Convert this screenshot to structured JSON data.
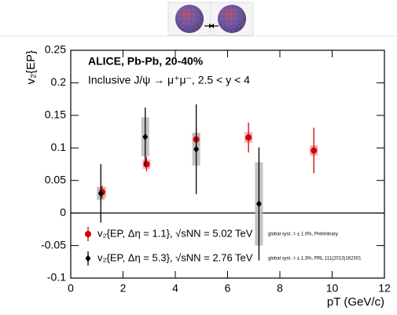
{
  "chart_data": {
    "type": "errorbar",
    "title": "ALICE, Pb-Pb, 20-40%",
    "subtitle": "Inclusive J/ψ → μ⁺μ⁻, 2.5 < y < 4",
    "x_label": "pT (GeV/c)",
    "y_label": "v₂{EP}",
    "xlim": [
      0,
      12
    ],
    "xticks": [
      0,
      2,
      4,
      6,
      8,
      10,
      12
    ],
    "ylim": [
      -0.1,
      0.25
    ],
    "yticks": [
      -0.1,
      -0.05,
      0,
      0.05,
      0.1,
      0.15,
      0.2,
      0.25
    ],
    "series": [
      {
        "name": "v₂{EP, Δη = 1.1}, √sNN = 5.02 TeV",
        "color": "#d40000",
        "syst_color": "#f4a0a0",
        "note": "global syst. = ± 1.0%, Preliminary",
        "x": [
          1.2,
          2.9,
          4.8,
          6.8,
          9.3
        ],
        "values": [
          0.032,
          0.075,
          0.113,
          0.116,
          0.096
        ],
        "errors": [
          0.01,
          0.011,
          0.018,
          0.023,
          0.035
        ],
        "syst": [
          0.008,
          0.007,
          0.01,
          0.008,
          0.008
        ]
      },
      {
        "name": "v₂{EP, Δη = 5.3}, √sNN = 2.76 TeV",
        "color": "#000000",
        "syst_color": "#b8b8b8",
        "note": "global syst. = ± 1.3%, PRL 111(2013)162301",
        "x": [
          1.15,
          2.85,
          4.8,
          7.2
        ],
        "values": [
          0.03,
          0.117,
          0.098,
          0.014
        ],
        "errors": [
          0.045,
          0.045,
          0.069,
          0.087
        ],
        "syst": [
          0.01,
          0.03,
          0.025,
          0.064
        ]
      }
    ]
  }
}
